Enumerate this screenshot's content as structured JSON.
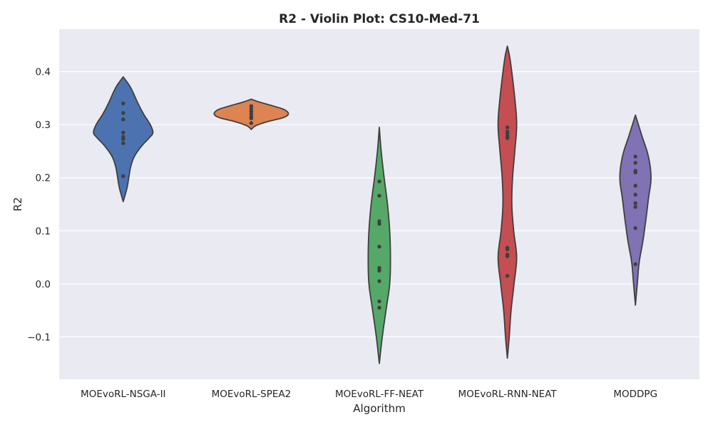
{
  "chart_data": {
    "type": "violin",
    "title": "R2 - Violin Plot: CS10-Med-71",
    "xlabel": "Algorithm",
    "ylabel": "R2",
    "ylim": [
      -0.18,
      0.48
    ],
    "yticks": [
      -0.1,
      0.0,
      0.1,
      0.2,
      0.3,
      0.4
    ],
    "ytick_labels": [
      "−0.1",
      "0.0",
      "0.1",
      "0.2",
      "0.3",
      "0.4"
    ],
    "grid": true,
    "background": "#eaeaf2",
    "categories": [
      "MOEvoRL-NSGA-II",
      "MOEvoRL-SPEA2",
      "MOEvoRL-FF-NEAT",
      "MOEvoRL-RNN-NEAT",
      "MODDPG"
    ],
    "series": [
      {
        "color": "#4c72b0",
        "points": [
          0.34,
          0.322,
          0.31,
          0.285,
          0.277,
          0.273,
          0.265,
          0.203
        ],
        "profile": [
          [
            0.39,
            0.0
          ],
          [
            0.37,
            0.2
          ],
          [
            0.34,
            0.4
          ],
          [
            0.32,
            0.55
          ],
          [
            0.3,
            0.73
          ],
          [
            0.285,
            0.8
          ],
          [
            0.275,
            0.7
          ],
          [
            0.26,
            0.5
          ],
          [
            0.24,
            0.3
          ],
          [
            0.22,
            0.2
          ],
          [
            0.2,
            0.15
          ],
          [
            0.18,
            0.1
          ],
          [
            0.155,
            0.0
          ]
        ]
      },
      {
        "color": "#dd8452",
        "points": [
          0.335,
          0.33,
          0.325,
          0.32,
          0.315,
          0.312,
          0.303
        ],
        "profile": [
          [
            0.348,
            0.0
          ],
          [
            0.343,
            0.2
          ],
          [
            0.335,
            0.6
          ],
          [
            0.328,
            0.9
          ],
          [
            0.32,
            1.0
          ],
          [
            0.313,
            0.85
          ],
          [
            0.306,
            0.45
          ],
          [
            0.298,
            0.12
          ],
          [
            0.291,
            0.0
          ]
        ]
      },
      {
        "color": "#55a868",
        "points": [
          0.193,
          0.166,
          0.118,
          0.113,
          0.07,
          0.03,
          0.025,
          0.005,
          -0.033,
          -0.045
        ],
        "profile": [
          [
            0.295,
            0.0
          ],
          [
            0.25,
            0.05
          ],
          [
            0.2,
            0.13
          ],
          [
            0.15,
            0.22
          ],
          [
            0.1,
            0.28
          ],
          [
            0.05,
            0.3
          ],
          [
            0.0,
            0.28
          ],
          [
            -0.05,
            0.18
          ],
          [
            -0.1,
            0.08
          ],
          [
            -0.15,
            0.0
          ]
        ]
      },
      {
        "color": "#c44e52",
        "points": [
          0.295,
          0.287,
          0.283,
          0.278,
          0.275,
          0.068,
          0.065,
          0.055,
          0.052,
          0.015
        ],
        "profile": [
          [
            0.448,
            0.0
          ],
          [
            0.42,
            0.08
          ],
          [
            0.35,
            0.2
          ],
          [
            0.3,
            0.25
          ],
          [
            0.25,
            0.2
          ],
          [
            0.2,
            0.14
          ],
          [
            0.15,
            0.12
          ],
          [
            0.1,
            0.17
          ],
          [
            0.05,
            0.25
          ],
          [
            0.0,
            0.18
          ],
          [
            -0.05,
            0.1
          ],
          [
            -0.1,
            0.05
          ],
          [
            -0.14,
            0.0
          ]
        ]
      },
      {
        "color": "#8172b3",
        "points": [
          0.24,
          0.228,
          0.213,
          0.21,
          0.185,
          0.168,
          0.152,
          0.145,
          0.105,
          0.037
        ],
        "profile": [
          [
            0.318,
            0.0
          ],
          [
            0.28,
            0.17
          ],
          [
            0.24,
            0.35
          ],
          [
            0.2,
            0.42
          ],
          [
            0.16,
            0.35
          ],
          [
            0.12,
            0.28
          ],
          [
            0.08,
            0.2
          ],
          [
            0.04,
            0.1
          ],
          [
            0.0,
            0.05
          ],
          [
            -0.04,
            0.0
          ]
        ]
      }
    ]
  }
}
